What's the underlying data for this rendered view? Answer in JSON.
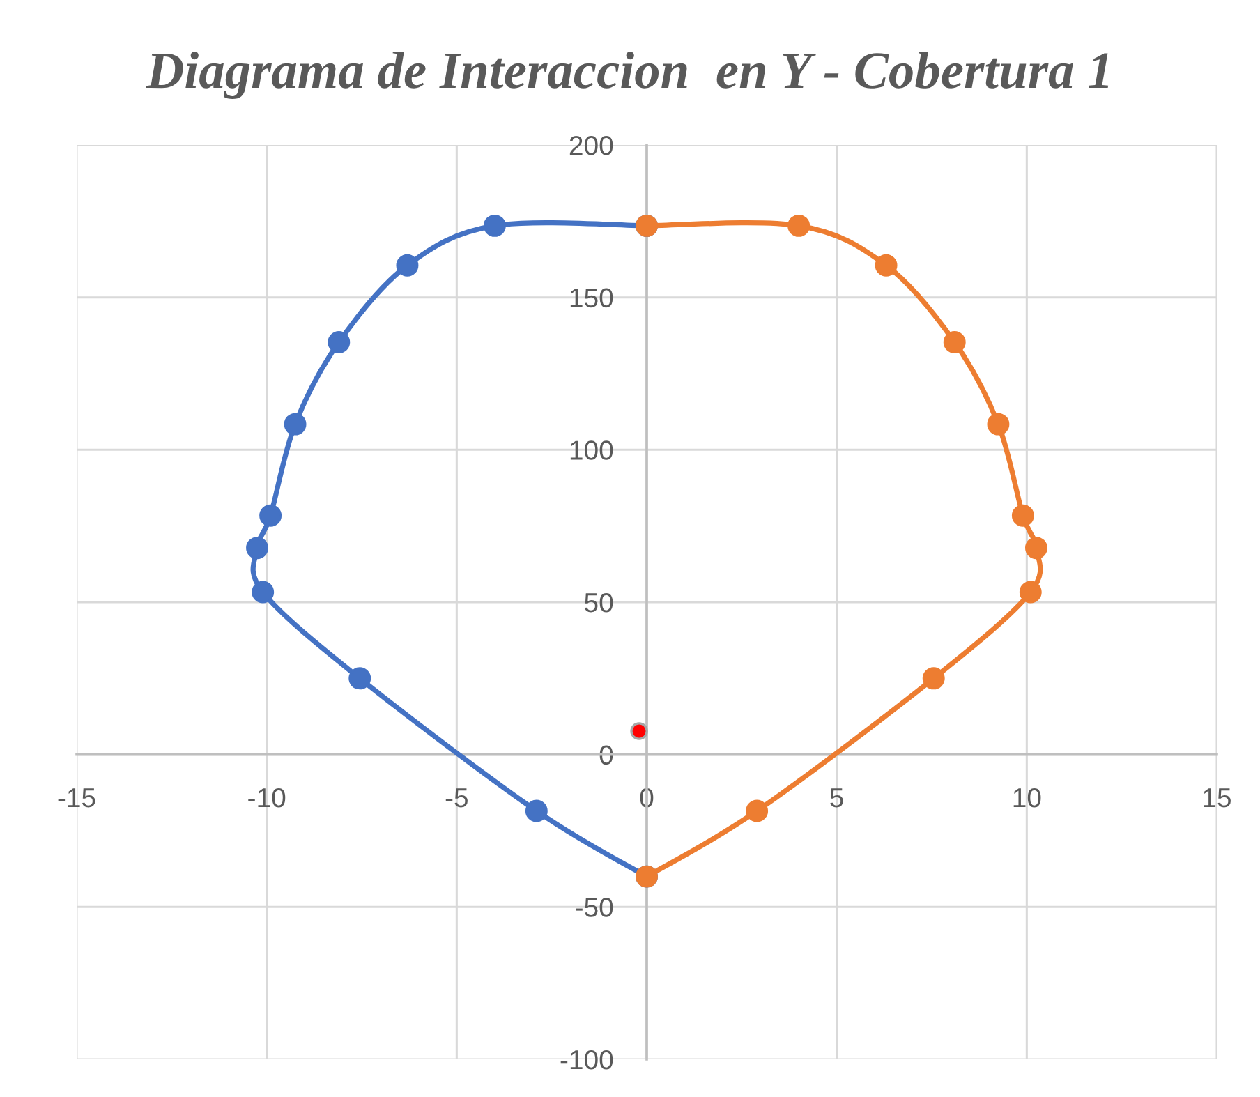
{
  "chart_data": {
    "type": "line",
    "title": "Diagrama de Interaccion  en Y - Cobertura 1",
    "xlim": [
      -15,
      15
    ],
    "xticks": [
      -15,
      -10,
      -5,
      0,
      5,
      10,
      15
    ],
    "ylim": [
      -100,
      200
    ],
    "yticks": [
      -100,
      -50,
      0,
      50,
      100,
      150,
      200
    ],
    "grid": true,
    "marker": "circle",
    "line_style": "solid",
    "series": [
      {
        "color": "#4472c4",
        "x": [
          0,
          -4,
          -6.3,
          -8.1,
          -9.25,
          -9.9,
          -10.25,
          -10.1,
          -7.55,
          -2.9,
          0
        ],
        "values": [
          173.5,
          173.5,
          160.5,
          135.3,
          108.4,
          78.4,
          67.8,
          53.3,
          25,
          -18.5,
          -40
        ]
      },
      {
        "color": "#ed7d31",
        "x": [
          0,
          4,
          6.3,
          8.1,
          9.25,
          9.9,
          10.25,
          10.1,
          7.55,
          2.9,
          0
        ],
        "values": [
          173.5,
          173.5,
          160.5,
          135.3,
          108.4,
          78.4,
          67.8,
          53.3,
          25,
          -18.5,
          -40
        ]
      },
      {
        "type": "scatter",
        "color": "#ff0000",
        "x": [
          -0.2
        ],
        "values": [
          7.7
        ]
      }
    ]
  }
}
